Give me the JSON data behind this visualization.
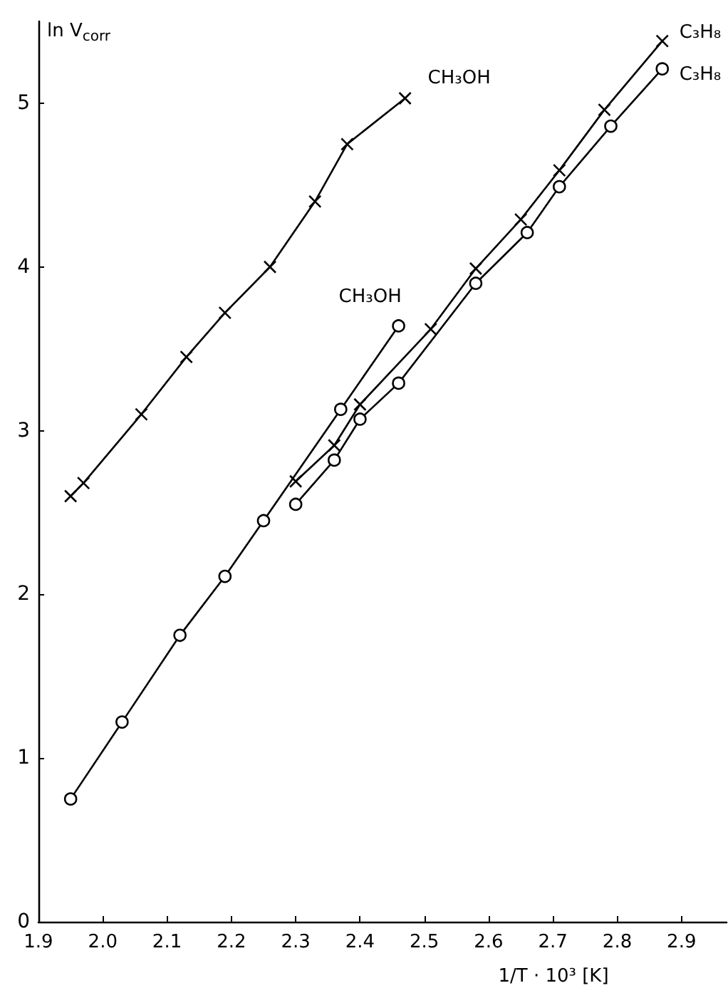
{
  "chart_data": {
    "type": "line",
    "xlabel": "1/T · 10³ [K]",
    "ylabel": "ln V$_{corr}$",
    "xlim": [
      1.9,
      2.97
    ],
    "xticks": [
      1.9,
      {
        "value": 2,
        "label": "2.0"
      },
      2.1,
      2.2,
      2.3,
      2.4,
      2.5,
      2.6,
      2.7,
      2.8,
      2.9
    ],
    "ylim": [
      0,
      5.5
    ],
    "yticks": [
      0,
      1,
      2,
      3,
      4,
      5
    ],
    "grid": false,
    "legend": false,
    "series": [
      {
        "name": "CH₃OH",
        "color": "#000000",
        "marker": "cross",
        "x": [
          1.95,
          1.97,
          2.06,
          2.13,
          2.19,
          2.26,
          2.33,
          2.38,
          2.47
        ],
        "values": [
          2.6,
          2.68,
          3.1,
          3.45,
          3.72,
          4.0,
          4.4,
          4.75,
          5.03
        ]
      },
      {
        "name": "CH₃OH",
        "color": "#000000",
        "marker": "circle",
        "x": [
          1.95,
          2.03,
          2.12,
          2.19,
          2.25,
          2.37,
          2.46
        ],
        "values": [
          0.75,
          1.22,
          1.75,
          2.11,
          2.45,
          3.13,
          3.64
        ]
      },
      {
        "name": "C₃H₈",
        "color": "#000000",
        "marker": "cross",
        "x": [
          2.3,
          2.36,
          2.4,
          2.51,
          2.58,
          2.65,
          2.71,
          2.78,
          2.87
        ],
        "values": [
          2.69,
          2.91,
          3.16,
          3.62,
          3.99,
          4.29,
          4.59,
          4.96,
          5.38
        ]
      },
      {
        "name": "C₃H₈",
        "color": "#000000",
        "marker": "circle",
        "x": [
          2.3,
          2.36,
          2.4,
          2.46,
          2.58,
          2.66,
          2.71,
          2.79,
          2.87
        ],
        "values": [
          2.55,
          2.82,
          3.07,
          3.29,
          3.9,
          4.21,
          4.49,
          4.86,
          5.21
        ]
      }
    ]
  }
}
